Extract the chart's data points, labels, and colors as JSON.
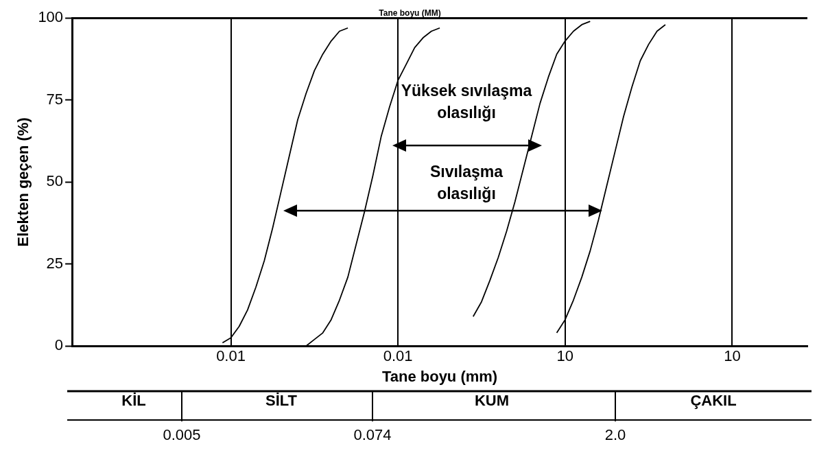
{
  "chart_data": {
    "type": "line",
    "title": "Tane boyu (MM)",
    "xlabel": "Tane boyu (mm)",
    "ylabel": "Elekten geçen (%)",
    "grid": "x",
    "categories": [
      null,
      null,
      null,
      null,
      null,
      null,
      null,
      null,
      null,
      null,
      null,
      null,
      null,
      null,
      null,
      null,
      null,
      null,
      null,
      "0.01",
      null,
      null,
      null,
      null,
      null,
      null,
      null,
      null,
      null,
      null,
      null,
      null,
      null,
      null,
      null,
      null,
      null,
      null,
      null,
      "0.01",
      null,
      null,
      null,
      null,
      null,
      null,
      null,
      null,
      null,
      null,
      null,
      null,
      null,
      null,
      null,
      null,
      null,
      null,
      null,
      "10",
      null,
      null,
      null,
      null,
      null,
      null,
      null,
      null,
      null,
      null,
      null,
      null,
      null,
      null,
      null,
      null,
      null,
      null,
      null,
      "10",
      null,
      null,
      null,
      null,
      null,
      null,
      null,
      null,
      null
    ],
    "ylim": [
      0,
      100
    ],
    "yticks": [
      0,
      25,
      50,
      75,
      100
    ],
    "series": [
      {
        "color": "#000000",
        "values": [
          null,
          null,
          null,
          null,
          null,
          null,
          null,
          null,
          null,
          null,
          null,
          null,
          null,
          null,
          null,
          null,
          null,
          null,
          1,
          2.5,
          6,
          11,
          18,
          26,
          36,
          47,
          58,
          69,
          77,
          84,
          89,
          93,
          96,
          97,
          null,
          null,
          null,
          null,
          null,
          null,
          null,
          null,
          null,
          null,
          null,
          null,
          null,
          null,
          null,
          null,
          null,
          null,
          null,
          null,
          null,
          null,
          null,
          null,
          null,
          null,
          null,
          null,
          null,
          null,
          null,
          null,
          null,
          null,
          null,
          null,
          null,
          null,
          null,
          null,
          null,
          null,
          null,
          null,
          null,
          null,
          null,
          null,
          null,
          null,
          null,
          null,
          null,
          null,
          null
        ]
      },
      {
        "color": "#000000",
        "values": [
          null,
          null,
          null,
          null,
          null,
          null,
          null,
          null,
          null,
          null,
          null,
          null,
          null,
          null,
          null,
          null,
          null,
          null,
          null,
          null,
          null,
          null,
          null,
          null,
          null,
          null,
          null,
          null,
          0,
          2,
          4,
          8,
          14,
          21,
          31,
          41,
          52,
          64,
          73,
          81,
          86,
          91,
          94,
          96,
          97,
          null,
          null,
          null,
          null,
          null,
          null,
          null,
          null,
          null,
          null,
          null,
          null,
          null,
          null,
          null,
          null,
          null,
          null,
          null,
          null,
          null,
          null,
          null,
          null,
          null,
          null,
          null,
          null,
          null,
          null,
          null,
          null,
          null,
          null,
          null,
          null,
          null,
          null,
          null,
          null,
          null,
          null,
          null,
          null
        ]
      },
      {
        "color": "#000000",
        "values": [
          null,
          null,
          null,
          null,
          null,
          null,
          null,
          null,
          null,
          null,
          null,
          null,
          null,
          null,
          null,
          null,
          null,
          null,
          null,
          null,
          null,
          null,
          null,
          null,
          null,
          null,
          null,
          null,
          null,
          null,
          null,
          null,
          null,
          null,
          null,
          null,
          null,
          null,
          null,
          null,
          null,
          null,
          null,
          null,
          null,
          null,
          null,
          null,
          9,
          13.5,
          20,
          27,
          35,
          44,
          54,
          64,
          74,
          82,
          89,
          93,
          96,
          98,
          99,
          null,
          null,
          null,
          null,
          null,
          null,
          null,
          null,
          null,
          null,
          null,
          null,
          null,
          null,
          null,
          null,
          null,
          null,
          null,
          null,
          null,
          null,
          null,
          null,
          null,
          null
        ]
      },
      {
        "color": "#000000",
        "values": [
          null,
          null,
          null,
          null,
          null,
          null,
          null,
          null,
          null,
          null,
          null,
          null,
          null,
          null,
          null,
          null,
          null,
          null,
          null,
          null,
          null,
          null,
          null,
          null,
          null,
          null,
          null,
          null,
          null,
          null,
          null,
          null,
          null,
          null,
          null,
          null,
          null,
          null,
          null,
          null,
          null,
          null,
          null,
          null,
          null,
          null,
          null,
          null,
          null,
          null,
          null,
          null,
          null,
          null,
          null,
          null,
          null,
          null,
          4,
          8,
          14,
          21,
          29,
          38.5,
          49,
          59.5,
          70,
          79,
          87,
          92,
          96,
          98,
          null,
          null,
          null,
          null,
          null,
          null,
          null,
          null,
          null,
          null,
          null,
          null,
          null,
          null,
          null,
          null,
          null
        ]
      }
    ],
    "annotations": [
      "Yüksek sıvılaşma olasılığı",
      "Sıvılaşma olasılığı",
      "KİL",
      "SİLT",
      "KUM",
      "ÇAKIL",
      "0.005",
      "0.074",
      "2.0"
    ]
  }
}
